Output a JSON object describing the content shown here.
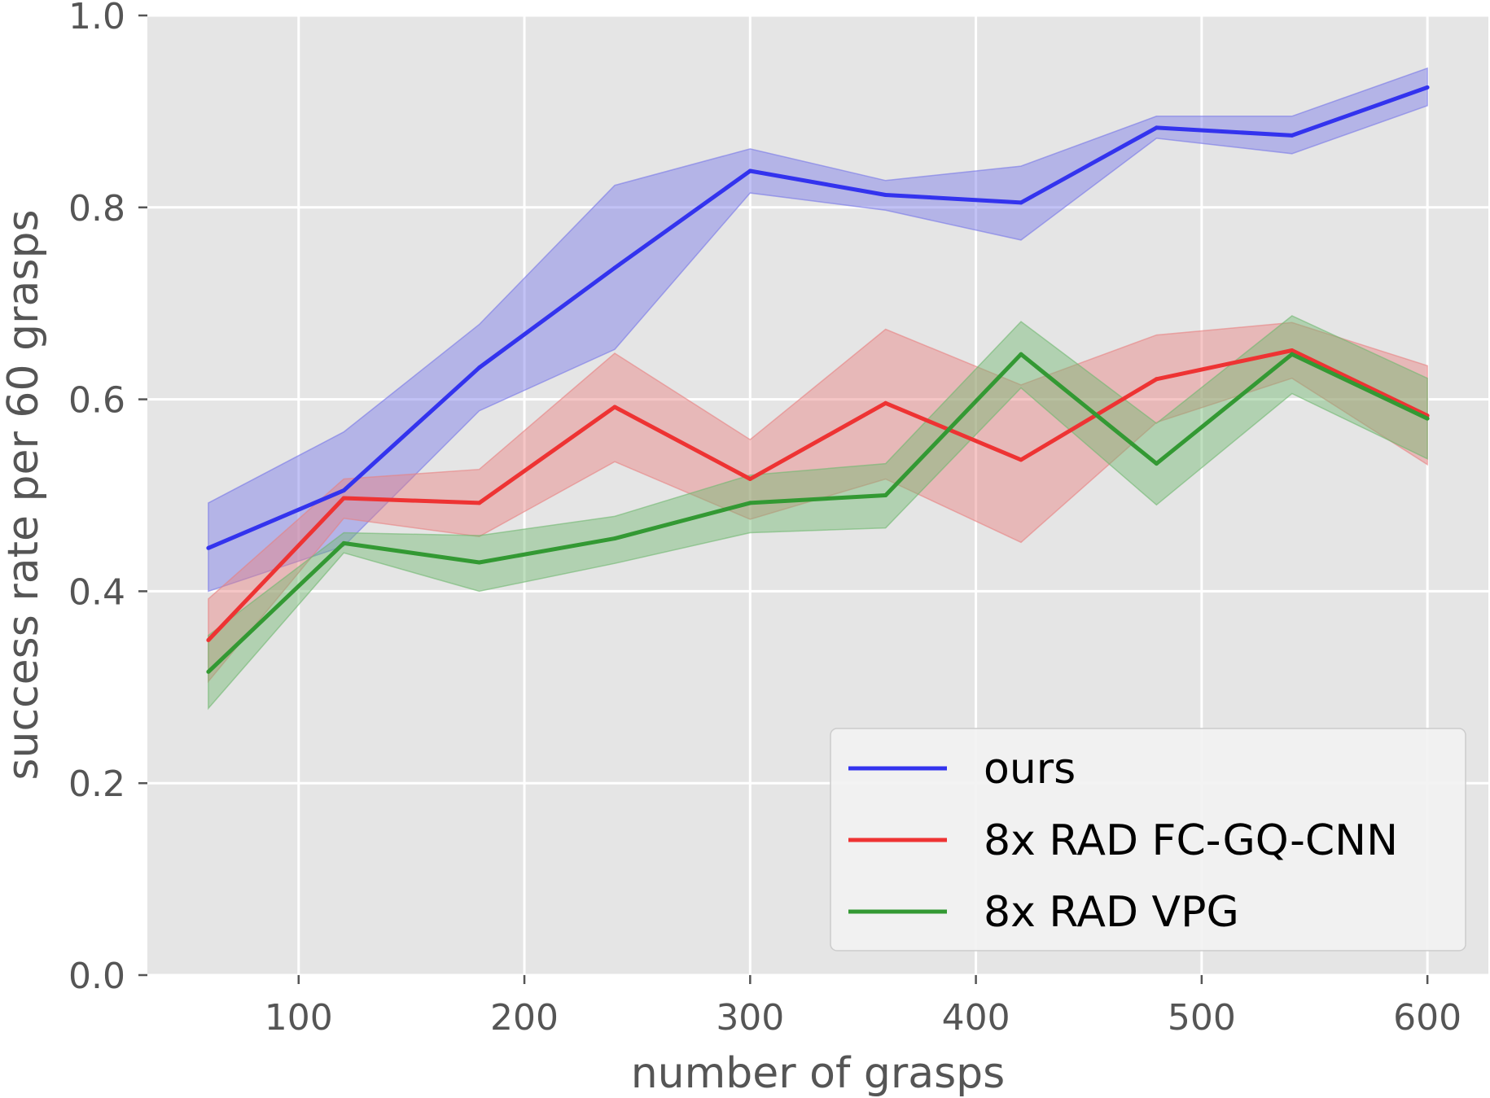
{
  "chart_data": {
    "type": "line",
    "title": "",
    "xlabel": "number of grasps",
    "ylabel": "success rate per 60 grasps",
    "xlim": [
      33,
      627
    ],
    "ylim": [
      0.0,
      1.0
    ],
    "xticks": [
      100,
      200,
      300,
      400,
      500,
      600
    ],
    "yticks": [
      0.0,
      0.2,
      0.4,
      0.6,
      0.8,
      1.0
    ],
    "xtick_labels": [
      "100",
      "200",
      "300",
      "400",
      "500",
      "600"
    ],
    "ytick_labels": [
      "0.0",
      "0.2",
      "0.4",
      "0.6",
      "0.8",
      "1.0"
    ],
    "grid": true,
    "legend_position": "lower-right",
    "x": [
      60,
      120,
      180,
      240,
      300,
      360,
      420,
      480,
      540,
      600
    ],
    "series": [
      {
        "name": "ours",
        "color": "#3333ee",
        "band_color": "#7777e8",
        "values": [
          0.445,
          0.505,
          0.633,
          0.737,
          0.838,
          0.813,
          0.805,
          0.883,
          0.875,
          0.925
        ],
        "lower": [
          0.4,
          0.447,
          0.588,
          0.652,
          0.815,
          0.797,
          0.766,
          0.872,
          0.856,
          0.906
        ],
        "upper": [
          0.492,
          0.566,
          0.678,
          0.823,
          0.861,
          0.828,
          0.843,
          0.895,
          0.895,
          0.945
        ]
      },
      {
        "name": "8x RAD FC-GQ-CNN",
        "color": "#ee3333",
        "band_color": "#e88080",
        "values": [
          0.349,
          0.497,
          0.492,
          0.592,
          0.517,
          0.596,
          0.537,
          0.621,
          0.651,
          0.583
        ],
        "lower": [
          0.306,
          0.476,
          0.457,
          0.535,
          0.475,
          0.517,
          0.451,
          0.576,
          0.622,
          0.532
        ],
        "upper": [
          0.392,
          0.517,
          0.527,
          0.648,
          0.558,
          0.673,
          0.615,
          0.667,
          0.68,
          0.635
        ]
      },
      {
        "name": "8x RAD VPG",
        "color": "#339933",
        "band_color": "#70b870",
        "values": [
          0.316,
          0.45,
          0.43,
          0.455,
          0.492,
          0.5,
          0.647,
          0.533,
          0.647,
          0.58
        ],
        "lower": [
          0.278,
          0.44,
          0.4,
          0.429,
          0.461,
          0.466,
          0.612,
          0.49,
          0.606,
          0.538
        ],
        "upper": [
          0.354,
          0.461,
          0.458,
          0.478,
          0.521,
          0.533,
          0.681,
          0.575,
          0.687,
          0.622
        ]
      }
    ]
  }
}
